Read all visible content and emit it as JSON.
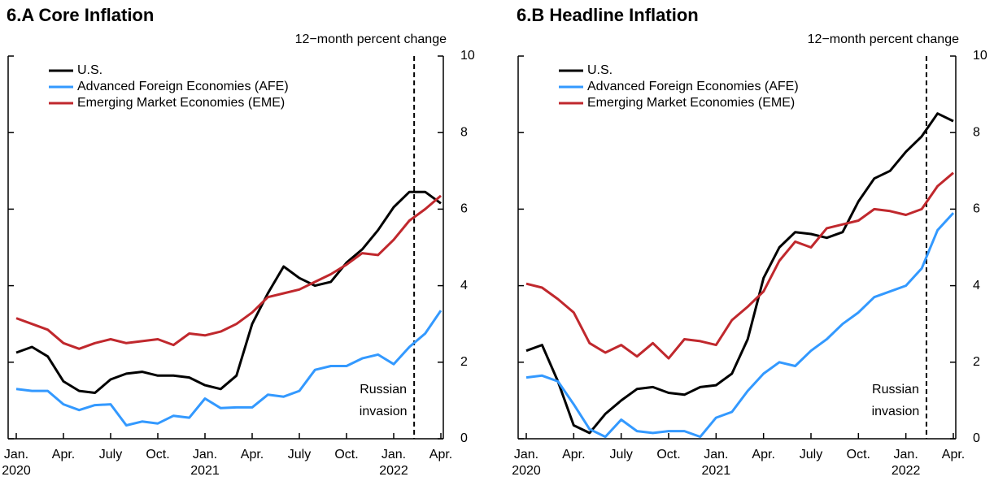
{
  "chart_data": [
    {
      "type": "line",
      "title": "6.A Core Inflation",
      "y_axis_label": "12−month percent change",
      "categories": [
        "Jan.",
        null,
        null,
        "Apr.",
        null,
        null,
        "July",
        null,
        null,
        "Oct.",
        null,
        null,
        "Jan.",
        null,
        null,
        "Apr.",
        null,
        null,
        "July",
        null,
        null,
        "Oct.",
        null,
        null,
        "Jan.",
        null,
        null,
        "Apr."
      ],
      "category_years": [
        "2020",
        null,
        null,
        null,
        null,
        null,
        null,
        null,
        null,
        null,
        null,
        null,
        "2021",
        null,
        null,
        null,
        null,
        null,
        null,
        null,
        null,
        null,
        null,
        null,
        "2022",
        null,
        null,
        null
      ],
      "series": [
        {
          "name": "U.S.",
          "color": "#000000",
          "values": [
            2.25,
            2.4,
            2.15,
            1.5,
            1.25,
            1.2,
            1.55,
            1.7,
            1.75,
            1.65,
            1.65,
            1.6,
            1.4,
            1.3,
            1.65,
            3.0,
            3.8,
            4.5,
            4.2,
            4.0,
            4.1,
            4.6,
            4.95,
            5.45,
            6.05,
            6.45,
            6.45,
            6.15
          ]
        },
        {
          "name": "Advanced Foreign Economies (AFE)",
          "color": "#3399ff",
          "values": [
            1.3,
            1.25,
            1.25,
            0.9,
            0.75,
            0.88,
            0.9,
            0.35,
            0.45,
            0.4,
            0.6,
            0.55,
            1.05,
            0.8,
            0.82,
            0.82,
            1.15,
            1.1,
            1.25,
            1.8,
            1.9,
            1.9,
            2.1,
            2.2,
            1.95,
            2.4,
            2.75,
            3.35
          ]
        },
        {
          "name": "Emerging Market Economies (EME)",
          "color": "#c0282d",
          "values": [
            3.15,
            3.0,
            2.85,
            2.5,
            2.35,
            2.5,
            2.6,
            2.5,
            2.55,
            2.6,
            2.45,
            2.75,
            2.7,
            2.8,
            3.0,
            3.3,
            3.7,
            3.8,
            3.9,
            4.1,
            4.3,
            4.55,
            4.85,
            4.8,
            5.2,
            5.7,
            6.0,
            6.35
          ]
        }
      ],
      "annotation": {
        "lines": [
          "Russian",
          "invasion"
        ],
        "x": 25.3
      },
      "ylim": [
        0,
        10
      ],
      "yticks": [
        0,
        2,
        4,
        6,
        8,
        10
      ]
    },
    {
      "type": "line",
      "title": "6.B Headline Inflation",
      "y_axis_label": "12−month percent change",
      "categories": [
        "Jan.",
        null,
        null,
        "Apr.",
        null,
        null,
        "July",
        null,
        null,
        "Oct.",
        null,
        null,
        "Jan.",
        null,
        null,
        "Apr.",
        null,
        null,
        "July",
        null,
        null,
        "Oct.",
        null,
        null,
        "Jan.",
        null,
        null,
        "Apr."
      ],
      "category_years": [
        "2020",
        null,
        null,
        null,
        null,
        null,
        null,
        null,
        null,
        null,
        null,
        null,
        "2021",
        null,
        null,
        null,
        null,
        null,
        null,
        null,
        null,
        null,
        null,
        null,
        "2022",
        null,
        null,
        null
      ],
      "series": [
        {
          "name": "U.S.",
          "color": "#000000",
          "values": [
            2.3,
            2.45,
            1.5,
            0.35,
            0.15,
            0.65,
            1.0,
            1.3,
            1.35,
            1.2,
            1.15,
            1.35,
            1.4,
            1.7,
            2.6,
            4.2,
            5.0,
            5.4,
            5.35,
            5.25,
            5.4,
            6.2,
            6.8,
            7.0,
            7.5,
            7.9,
            8.5,
            8.3
          ]
        },
        {
          "name": "Advanced Foreign Economies (AFE)",
          "color": "#3399ff",
          "values": [
            1.6,
            1.65,
            1.5,
            0.9,
            0.25,
            0.05,
            0.5,
            0.2,
            0.15,
            0.2,
            0.2,
            0.05,
            0.55,
            0.7,
            1.25,
            1.7,
            2.0,
            1.9,
            2.3,
            2.6,
            3.0,
            3.3,
            3.7,
            3.85,
            4.0,
            4.45,
            5.45,
            5.9
          ]
        },
        {
          "name": "Emerging Market Economies (EME)",
          "color": "#c0282d",
          "values": [
            4.05,
            3.95,
            3.65,
            3.3,
            2.5,
            2.25,
            2.45,
            2.15,
            2.5,
            2.1,
            2.6,
            2.55,
            2.45,
            3.1,
            3.45,
            3.85,
            4.65,
            5.15,
            5.0,
            5.5,
            5.6,
            5.7,
            6.0,
            5.95,
            5.85,
            6.0,
            6.6,
            6.95
          ]
        }
      ],
      "annotation": {
        "lines": [
          "Russian",
          "invasion"
        ],
        "x": 25.3
      },
      "ylim": [
        0,
        10
      ],
      "yticks": [
        0,
        2,
        4,
        6,
        8,
        10
      ]
    }
  ]
}
